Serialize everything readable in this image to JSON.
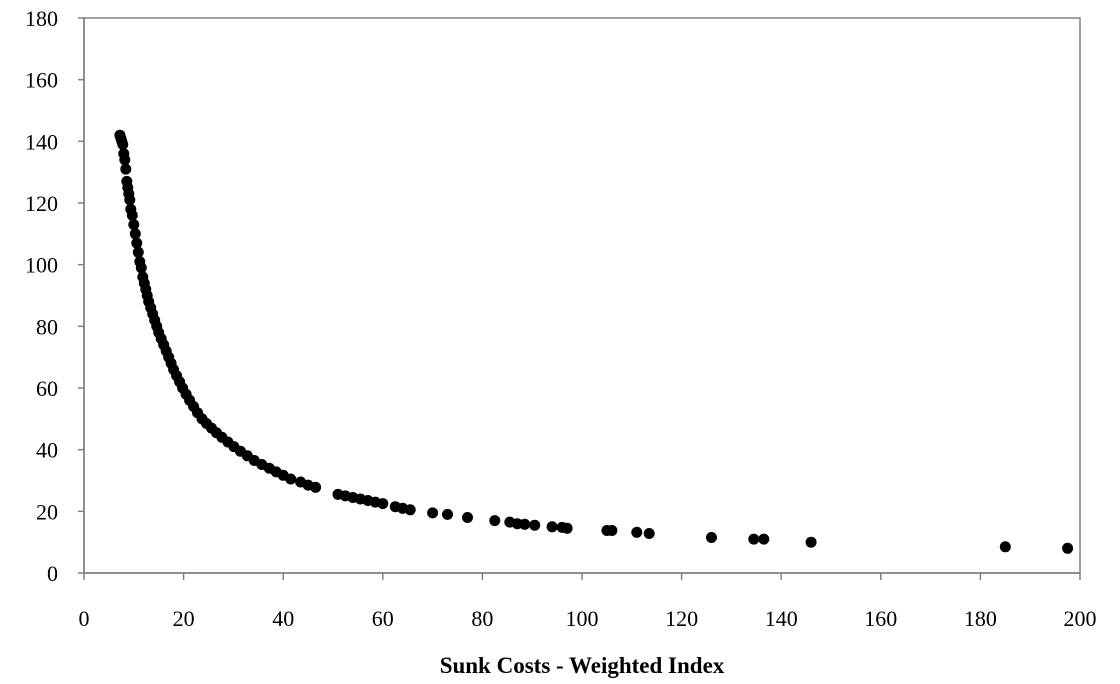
{
  "chart_data": {
    "type": "scatter",
    "title": "",
    "xlabel": "Sunk Costs - Weighted Index",
    "ylabel": "",
    "xlim": [
      0,
      200
    ],
    "ylim": [
      0,
      180
    ],
    "x_ticks": [
      "0",
      "20",
      "40",
      "60",
      "80",
      "100",
      "120",
      "140",
      "160",
      "180",
      "200"
    ],
    "y_ticks": [
      "0",
      "20",
      "40",
      "60",
      "80",
      "100",
      "120",
      "140",
      "160",
      "180"
    ],
    "grid": false,
    "legend": "none",
    "colors": {
      "marker": "#000000",
      "axis": "#808080",
      "background": "#ffffff"
    },
    "series": [
      {
        "points": [
          [
            7.2,
            142
          ],
          [
            7.4,
            141
          ],
          [
            7.6,
            140
          ],
          [
            7.8,
            139
          ],
          [
            8.0,
            136
          ],
          [
            8.2,
            134
          ],
          [
            8.4,
            131
          ],
          [
            8.6,
            127
          ],
          [
            8.8,
            125
          ],
          [
            9.0,
            123
          ],
          [
            9.2,
            121
          ],
          [
            9.4,
            118
          ],
          [
            9.7,
            116
          ],
          [
            10.0,
            113
          ],
          [
            10.3,
            110
          ],
          [
            10.6,
            107
          ],
          [
            10.9,
            104
          ],
          [
            11.2,
            101
          ],
          [
            11.5,
            99
          ],
          [
            11.8,
            96
          ],
          [
            12.1,
            94
          ],
          [
            12.4,
            92
          ],
          [
            12.7,
            90
          ],
          [
            13.0,
            88
          ],
          [
            13.4,
            86
          ],
          [
            13.8,
            84
          ],
          [
            14.2,
            82
          ],
          [
            14.6,
            80
          ],
          [
            15.0,
            78
          ],
          [
            15.5,
            76
          ],
          [
            16.0,
            74
          ],
          [
            16.5,
            72
          ],
          [
            17.0,
            70
          ],
          [
            17.5,
            68
          ],
          [
            18.0,
            66
          ],
          [
            18.6,
            64
          ],
          [
            19.2,
            62
          ],
          [
            19.8,
            60
          ],
          [
            20.5,
            58
          ],
          [
            21.2,
            56
          ],
          [
            22.0,
            54
          ],
          [
            22.8,
            52
          ],
          [
            23.7,
            50
          ],
          [
            24.6,
            48.5
          ],
          [
            25.6,
            47
          ],
          [
            26.6,
            45.5
          ],
          [
            27.7,
            44
          ],
          [
            28.9,
            42.5
          ],
          [
            30.1,
            41
          ],
          [
            31.4,
            39.5
          ],
          [
            32.8,
            38
          ],
          [
            34.2,
            36.5
          ],
          [
            35.7,
            35.2
          ],
          [
            37.2,
            34
          ],
          [
            38.6,
            32.8
          ],
          [
            40.0,
            31.7
          ],
          [
            41.5,
            30.5
          ],
          [
            43.5,
            29.5
          ],
          [
            45.0,
            28.5
          ],
          [
            46.5,
            27.8
          ],
          [
            51.0,
            25.5
          ],
          [
            52.5,
            25.0
          ],
          [
            54.0,
            24.5
          ],
          [
            55.5,
            24.0
          ],
          [
            57.0,
            23.5
          ],
          [
            58.5,
            23.0
          ],
          [
            60.0,
            22.5
          ],
          [
            62.5,
            21.5
          ],
          [
            64.0,
            21.0
          ],
          [
            65.5,
            20.5
          ],
          [
            70.0,
            19.5
          ],
          [
            73.0,
            19.0
          ],
          [
            77.0,
            18.0
          ],
          [
            82.5,
            17.0
          ],
          [
            85.5,
            16.5
          ],
          [
            87.0,
            16.0
          ],
          [
            88.5,
            15.8
          ],
          [
            90.5,
            15.5
          ],
          [
            94.0,
            15.0
          ],
          [
            96.0,
            14.8
          ],
          [
            97.0,
            14.5
          ],
          [
            105.0,
            13.8
          ],
          [
            106.0,
            13.8
          ],
          [
            111.0,
            13.2
          ],
          [
            113.5,
            12.8
          ],
          [
            126.0,
            11.5
          ],
          [
            134.5,
            11.0
          ],
          [
            136.5,
            11.0
          ],
          [
            146.0,
            10.0
          ],
          [
            185.0,
            8.5
          ],
          [
            197.5,
            8.0
          ]
        ]
      }
    ]
  }
}
